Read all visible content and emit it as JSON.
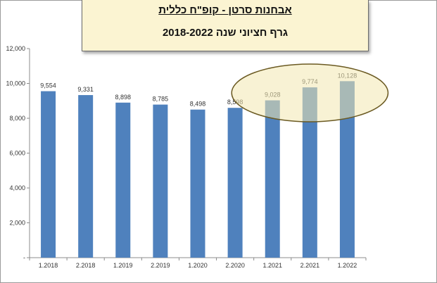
{
  "header": {
    "title": "אבחנות סרטן - קופ\"ח כללית",
    "subtitle": "גרף חציוני שנה 2018-2022"
  },
  "chart_data": {
    "type": "bar",
    "categories": [
      "1.2018",
      "2.2018",
      "1.2019",
      "2.2019",
      "1.2020",
      "2.2020",
      "1.2021",
      "2.2021",
      "1.2022"
    ],
    "values": [
      9554,
      9331,
      8898,
      8785,
      8498,
      8598,
      9028,
      9774,
      10128
    ],
    "value_labels": [
      "9,554",
      "9,331",
      "8,898",
      "8,785",
      "8,498",
      "8,598",
      "9,028",
      "9,774",
      "10,128"
    ],
    "y_ticks": [
      0,
      2000,
      4000,
      6000,
      8000,
      10000,
      12000
    ],
    "y_tick_labels": [
      "-",
      "2,000",
      "4,000",
      "6,000",
      "8,000",
      "10,000",
      "12,000"
    ],
    "ylim": [
      0,
      12000
    ],
    "grid": false,
    "colors": {
      "bar": "#4f81bd",
      "highlight_fill": "#f2e8b0",
      "highlight_stroke": "#6b5a22"
    },
    "highlight": {
      "categories": [
        "1.2021",
        "2.2021",
        "1.2022"
      ]
    }
  }
}
